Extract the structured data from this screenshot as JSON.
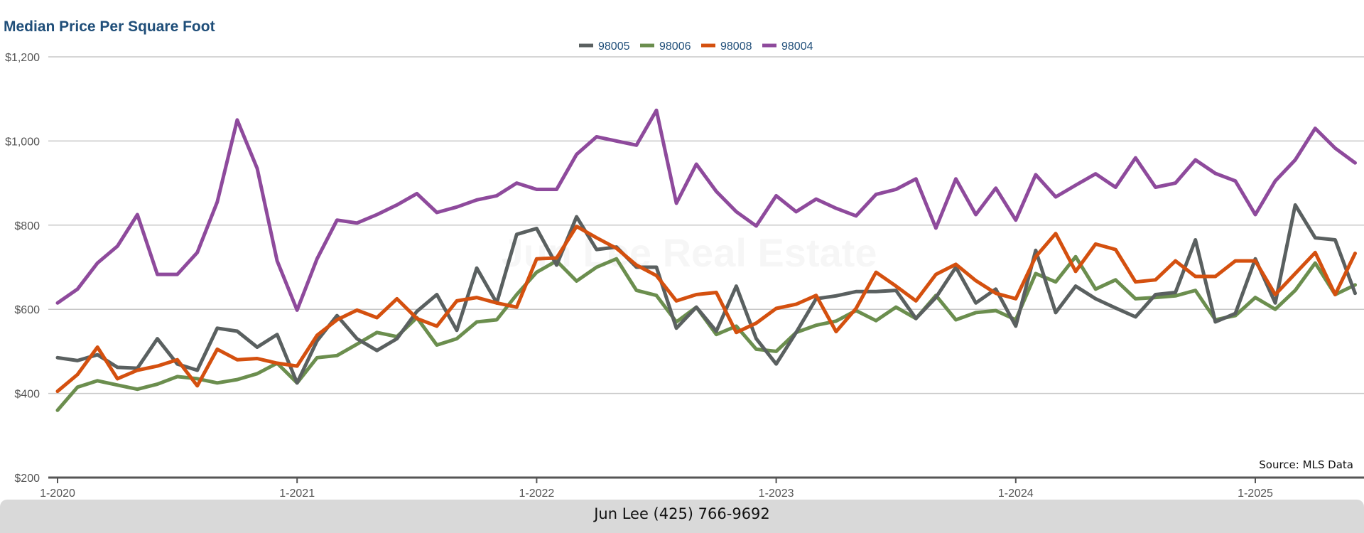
{
  "chart_data": {
    "type": "line",
    "title": "Median Price Per Square Foot",
    "xlabel": "",
    "ylabel": "",
    "ylim": [
      200,
      1200
    ],
    "y_ticks": [
      "$200",
      "$400",
      "$600",
      "$800",
      "$1,000",
      "$1,200"
    ],
    "y_tick_values": [
      200,
      400,
      600,
      800,
      1000,
      1200
    ],
    "x_ticks": [
      "1-2020",
      "1-2021",
      "1-2022",
      "1-2023",
      "1-2024",
      "1-2025"
    ],
    "x_tick_index": [
      0,
      12,
      24,
      36,
      48,
      60
    ],
    "grid": true,
    "legend_position": "top-center",
    "months_count": 66,
    "series": [
      {
        "name": "98005",
        "color": "#5a6060",
        "values": [
          485,
          478,
          492,
          462,
          460,
          530,
          470,
          455,
          555,
          548,
          510,
          540,
          425,
          525,
          585,
          530,
          502,
          530,
          595,
          635,
          550,
          698,
          615,
          778,
          792,
          705,
          820,
          742,
          748,
          700,
          700,
          555,
          605,
          548,
          655,
          530,
          470,
          545,
          625,
          632,
          642,
          642,
          645,
          578,
          628,
          700,
          615,
          648,
          560,
          740,
          592,
          655,
          625,
          603,
          582,
          635,
          640,
          765,
          570,
          590,
          720,
          615,
          848,
          770,
          765,
          638
        ]
      },
      {
        "name": "98006",
        "color": "#6b8e4e",
        "values": [
          360,
          415,
          430,
          420,
          410,
          422,
          440,
          435,
          425,
          433,
          447,
          472,
          425,
          485,
          490,
          517,
          545,
          535,
          580,
          515,
          530,
          570,
          575,
          635,
          688,
          715,
          667,
          700,
          720,
          645,
          633,
          570,
          605,
          540,
          560,
          505,
          500,
          545,
          562,
          572,
          597,
          573,
          605,
          578,
          633,
          575,
          592,
          597,
          575,
          685,
          665,
          725,
          648,
          670,
          625,
          628,
          632,
          645,
          575,
          585,
          628,
          600,
          645,
          710,
          635,
          658
        ]
      },
      {
        "name": "98008",
        "color": "#d4500f",
        "values": [
          405,
          445,
          510,
          435,
          455,
          465,
          480,
          418,
          505,
          480,
          483,
          472,
          465,
          538,
          575,
          598,
          580,
          625,
          578,
          560,
          620,
          628,
          615,
          605,
          720,
          722,
          797,
          770,
          745,
          705,
          680,
          620,
          635,
          640,
          545,
          567,
          602,
          612,
          633,
          547,
          602,
          688,
          655,
          620,
          683,
          707,
          668,
          638,
          625,
          725,
          780,
          690,
          755,
          742,
          665,
          670,
          715,
          678,
          678,
          715,
          715,
          635,
          685,
          735,
          635,
          733
        ]
      },
      {
        "name": "98004",
        "color": "#8e4a9c",
        "values": [
          615,
          648,
          710,
          750,
          825,
          683,
          683,
          735,
          855,
          1050,
          935,
          715,
          598,
          720,
          812,
          805,
          825,
          848,
          875,
          830,
          843,
          860,
          870,
          900,
          885,
          885,
          968,
          1010,
          1000,
          990,
          1073,
          852,
          945,
          880,
          832,
          798,
          870,
          832,
          862,
          840,
          822,
          873,
          885,
          910,
          793,
          910,
          825,
          888,
          812,
          920,
          867,
          895,
          922,
          890,
          960,
          890,
          900,
          955,
          923,
          905,
          825,
          905,
          955,
          1030,
          983,
          948
        ]
      }
    ]
  },
  "source": "Source: MLS Data",
  "footer": "Jun Lee (425) 766-9692",
  "watermark": "Jun Lee Real Estate"
}
